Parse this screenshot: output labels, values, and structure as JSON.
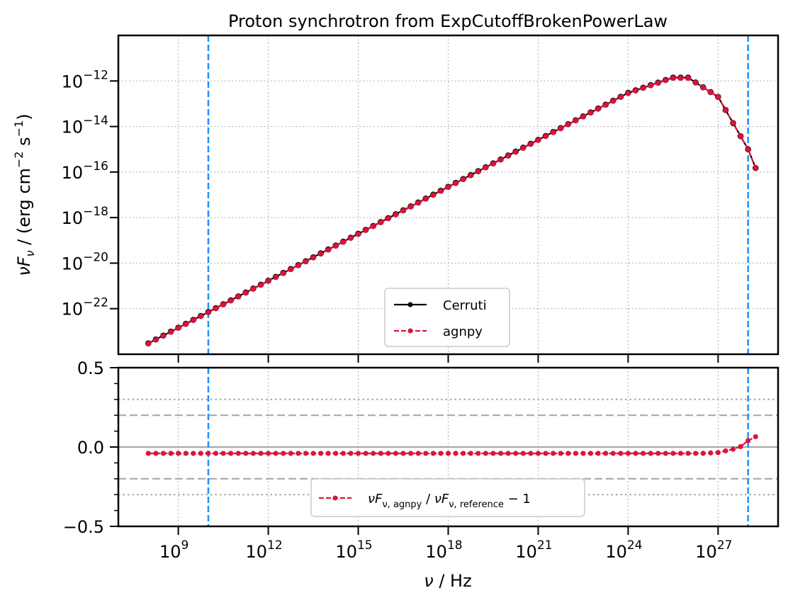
{
  "title": "Proton synchrotron from ExpCutoffBrokenPowerLaw",
  "chart_data": [
    {
      "type": "line",
      "panel": "top",
      "title": "Proton synchrotron from ExpCutoffBrokenPowerLaw",
      "ylabel": "νF_ν / (erg cm^-2 s^-1)",
      "y_scale": "log",
      "x_scale": "log",
      "xlim": [
        10000000.0,
        1e+29
      ],
      "ylim": [
        1e-24,
        1e-10
      ],
      "y_ticks": [
        1e-22,
        1e-20,
        1e-18,
        1e-16,
        1e-14,
        1e-12
      ],
      "x_ticks": [
        1000000000.0,
        1000000000000.0,
        1000000000000000.0,
        1e+18,
        1e+21,
        1e+24,
        1e+27
      ],
      "grid": true,
      "legend_position": "lower center",
      "vlines": [
        10000000000.0,
        1e+28
      ],
      "series": [
        {
          "name": "Cerruti",
          "color": "#000000",
          "style": "solid",
          "x": [
            100000000.0,
            1e+24,
            3e+25,
            1e+26,
            1e+27,
            1e+28,
            3e+28
          ],
          "y": [
            3e-24,
            3e-13,
            1.4e-12,
            1.4e-12,
            2e-13,
            1e-15,
            2.7e-17
          ]
        },
        {
          "name": "agnpy",
          "color": "#dc143c",
          "style": "dashed",
          "x": [
            100000000.0,
            1e+24,
            3e+25,
            1e+26,
            1e+27,
            1e+28,
            3e+28
          ],
          "y": [
            2.9e-24,
            2.9e-13,
            1.35e-12,
            1.35e-12,
            2e-13,
            1e-15,
            2.7e-17
          ]
        }
      ]
    },
    {
      "type": "line",
      "panel": "bottom",
      "xlabel": "ν / Hz",
      "ylim": [
        -0.5,
        0.5
      ],
      "y_ticks": [
        -0.5,
        0.0,
        0.5
      ],
      "y_tick_labels": [
        "−0.5",
        "0.0",
        "0.5"
      ],
      "hlines": [
        {
          "y": 0.0,
          "style": "solid"
        },
        {
          "y": 0.2,
          "style": "dashed"
        },
        {
          "y": -0.2,
          "style": "dashed"
        },
        {
          "y": 0.3,
          "style": "dotted"
        },
        {
          "y": -0.3,
          "style": "dotted"
        }
      ],
      "vlines": [
        10000000000.0,
        1e+28
      ],
      "legend_position": "lower center",
      "series": [
        {
          "name": "νF_ν,agnpy / νF_ν,reference − 1",
          "color": "#dc143c",
          "style": "dashed",
          "x": [
            100000000.0,
            1e+26,
            3e+26,
            1e+27,
            5e+27,
            1e+28,
            2e+28,
            3e+28
          ],
          "y": [
            -0.04,
            -0.04,
            -0.04,
            -0.035,
            -0.005,
            0.04,
            0.07,
            0.11
          ]
        }
      ]
    }
  ],
  "legend": {
    "top": [
      "Cerruti",
      "agnpy"
    ],
    "bottom": "νF_ν,agnpy / νF_ν,reference − 1"
  },
  "colors": {
    "reference": "#000000",
    "agnpy": "#dc143c",
    "vline": "#1e90ff",
    "guide": "#a9a9a9"
  }
}
